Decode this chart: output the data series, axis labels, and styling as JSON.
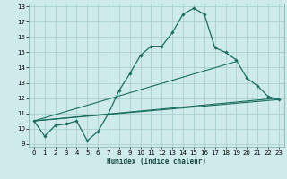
{
  "xlabel": "Humidex (Indice chaleur)",
  "bg_color": "#ceeaea",
  "grid_color": "#aacece",
  "line_color": "#1a6e60",
  "xlim": [
    -0.5,
    23.5
  ],
  "ylim": [
    8.8,
    18.2
  ],
  "yticks": [
    9,
    10,
    11,
    12,
    13,
    14,
    15,
    16,
    17,
    18
  ],
  "xticks": [
    0,
    1,
    2,
    3,
    4,
    5,
    6,
    7,
    8,
    9,
    10,
    11,
    12,
    13,
    14,
    15,
    16,
    17,
    18,
    19,
    20,
    21,
    22,
    23
  ],
  "main_curve_x": [
    0,
    1,
    2,
    3,
    4,
    5,
    6,
    7,
    8,
    9,
    10,
    11,
    12,
    13,
    14,
    15,
    16,
    17,
    18,
    19,
    20,
    21,
    22,
    23
  ],
  "main_curve_y": [
    10.5,
    9.5,
    10.2,
    10.3,
    10.5,
    9.2,
    9.8,
    11.0,
    12.5,
    13.6,
    14.8,
    15.4,
    15.4,
    16.3,
    17.5,
    17.9,
    17.5,
    15.3,
    15.0,
    14.5,
    13.3,
    12.8,
    12.1,
    11.9
  ],
  "line1_x": [
    0,
    23
  ],
  "line1_y": [
    10.5,
    11.9
  ],
  "line2_x": [
    0,
    23
  ],
  "line2_y": [
    10.5,
    12.0
  ],
  "line3_x": [
    0,
    19
  ],
  "line3_y": [
    10.5,
    14.4
  ]
}
